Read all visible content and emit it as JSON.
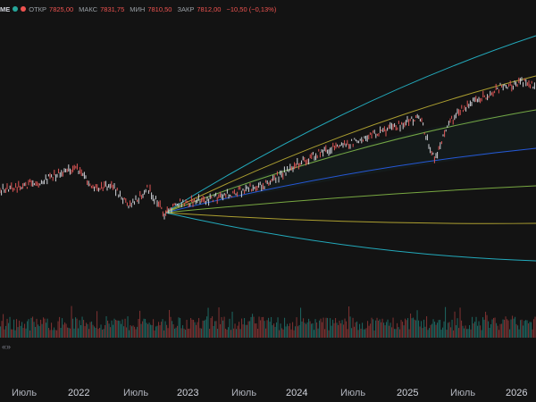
{
  "legend": {
    "symbol": "ME",
    "open_label": "ОТКР",
    "open_value": "7825,00",
    "high_label": "МАКС",
    "high_value": "7831,75",
    "low_label": "МИН",
    "low_value": "7810,50",
    "close_label": "ЗАКР",
    "close_value": "7812,00",
    "change": "−10,50 (−0,13%)",
    "down_color": "#ef5350",
    "up_color": "#26a69a"
  },
  "time_axis": {
    "labels": [
      "Июль",
      "2022",
      "Июль",
      "2023",
      "Июль",
      "2024",
      "Июль",
      "2025",
      "Июль",
      "2026"
    ]
  },
  "volume_arrow": "«»",
  "chart_data": {
    "type": "line",
    "price_start": {
      "date": "2021-07",
      "value": 4300
    },
    "price_last": {
      "date": "2026-02",
      "value": 7812
    },
    "bands": {
      "start_date": "2022-10",
      "start_value": 3577,
      "colors": [
        "#26c6da",
        "#c8b936",
        "#8bc34a",
        "#2962ff",
        "#8bc34a",
        "#c8b936",
        "#26c6da"
      ]
    },
    "series_color_price": "#b2b5be"
  }
}
